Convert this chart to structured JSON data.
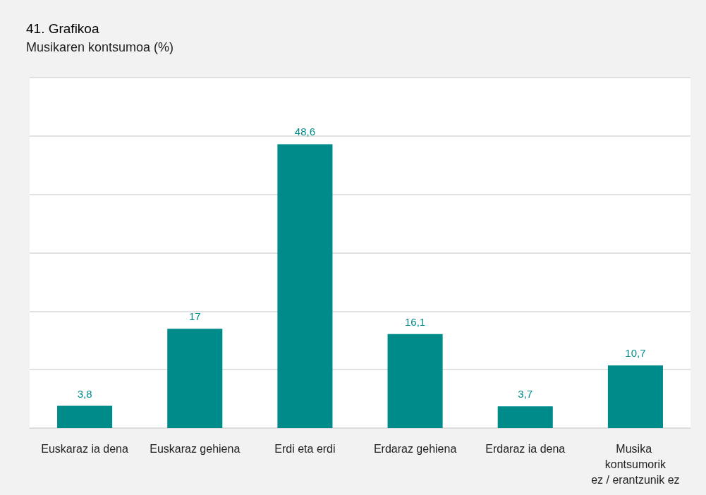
{
  "chart_data": {
    "type": "bar",
    "title": "41. Grafikoa",
    "subtitle": "Musikaren kontsumoa (%)",
    "categories": [
      "Euskaraz ia dena",
      "Euskaraz gehiena",
      "Erdi eta erdi",
      "Erdaraz gehiena",
      "Erdaraz ia dena",
      "Musika kontsumorik ez / erantzunik ez"
    ],
    "values": [
      3.8,
      17,
      48.6,
      16.1,
      3.7,
      10.7
    ],
    "value_labels": [
      "3,8",
      "17",
      "48,6",
      "16,1",
      "3,7",
      "10,7"
    ],
    "color": "#008b8b",
    "ylim": [
      0,
      60
    ],
    "yticks": [
      {
        "value": 0,
        "label": null
      },
      {
        "value": 10,
        "label": null
      },
      {
        "value": 20,
        "label": null
      },
      {
        "value": 30,
        "label": null
      },
      {
        "value": 40,
        "label": null
      },
      {
        "value": 50,
        "label": null
      },
      {
        "value": 60,
        "label": null
      }
    ],
    "tick_labels": "x",
    "grid": "y"
  }
}
